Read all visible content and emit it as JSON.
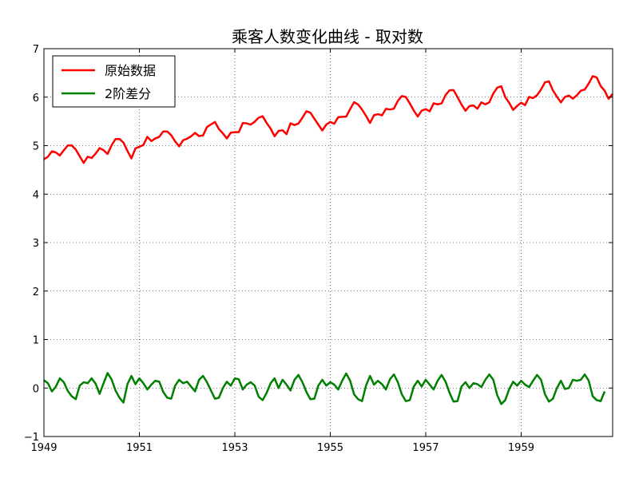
{
  "chart_data": {
    "type": "line",
    "title": "乘客人数变化曲线 - 取对数",
    "xlabel": "",
    "ylabel": "",
    "xlim": [
      1949.0,
      1960.917
    ],
    "ylim": [
      -1,
      7
    ],
    "grid": true,
    "legend_position": "top-left",
    "x_ticks": [
      1949,
      1951,
      1953,
      1955,
      1957,
      1959
    ],
    "x_tick_labels": [
      "1949",
      "1951",
      "1953",
      "1955",
      "1957",
      "1959"
    ],
    "y_ticks": [
      -1,
      0,
      1,
      2,
      3,
      4,
      5,
      6,
      7
    ],
    "y_tick_labels": [
      "−1",
      "0",
      "1",
      "2",
      "3",
      "4",
      "5",
      "6",
      "7"
    ],
    "series": [
      {
        "name": "原始数据",
        "color": "#ff0000",
        "x_start": 1949.0,
        "x_step": 0.08333,
        "values": [
          4.718,
          4.771,
          4.883,
          4.86,
          4.796,
          4.905,
          5.004,
          5.004,
          4.92,
          4.779,
          4.644,
          4.771,
          4.745,
          4.836,
          4.949,
          4.905,
          4.828,
          5.004,
          5.136,
          5.136,
          5.063,
          4.891,
          4.736,
          4.942,
          4.977,
          5.011,
          5.182,
          5.094,
          5.147,
          5.182,
          5.293,
          5.293,
          5.215,
          5.088,
          4.984,
          5.112,
          5.142,
          5.193,
          5.263,
          5.198,
          5.209,
          5.384,
          5.438,
          5.489,
          5.342,
          5.252,
          5.148,
          5.268,
          5.278,
          5.278,
          5.464,
          5.46,
          5.434,
          5.493,
          5.576,
          5.606,
          5.468,
          5.352,
          5.193,
          5.303,
          5.318,
          5.236,
          5.46,
          5.425,
          5.455,
          5.576,
          5.71,
          5.68,
          5.557,
          5.434,
          5.313,
          5.434,
          5.489,
          5.451,
          5.587,
          5.595,
          5.598,
          5.753,
          5.897,
          5.849,
          5.743,
          5.613,
          5.468,
          5.628,
          5.649,
          5.624,
          5.759,
          5.746,
          5.762,
          5.924,
          6.023,
          6.004,
          5.872,
          5.724,
          5.602,
          5.724,
          5.753,
          5.707,
          5.874,
          5.852,
          5.872,
          6.045,
          6.142,
          6.146,
          6.001,
          5.849,
          5.72,
          5.817,
          5.829,
          5.762,
          5.892,
          5.852,
          5.894,
          6.075,
          6.196,
          6.225,
          6.001,
          5.883,
          5.737,
          5.82,
          5.886,
          5.835,
          6.006,
          5.981,
          6.04,
          6.157,
          6.306,
          6.326,
          6.138,
          6.009,
          5.892,
          6.004,
          6.033,
          5.969,
          6.038,
          6.133,
          6.157,
          6.282,
          6.433,
          6.407,
          6.23,
          6.133,
          5.966,
          6.068
        ]
      },
      {
        "name": "2阶差分",
        "color": "#008000",
        "x_start": 1949.0,
        "x_step": 0.08333,
        "values": [
          0.16,
          0.1,
          -0.07,
          0.03,
          0.2,
          0.12,
          -0.06,
          -0.17,
          -0.23,
          0.05,
          0.12,
          0.1,
          0.2,
          0.09,
          -0.12,
          0.1,
          0.31,
          0.18,
          -0.05,
          -0.2,
          -0.3,
          0.08,
          0.25,
          0.08,
          0.2,
          0.1,
          -0.03,
          0.07,
          0.15,
          0.13,
          -0.08,
          -0.2,
          -0.22,
          0.05,
          0.17,
          0.1,
          0.13,
          0.03,
          -0.07,
          0.17,
          0.25,
          0.12,
          -0.05,
          -0.22,
          -0.2,
          0.0,
          0.13,
          0.05,
          0.2,
          0.18,
          -0.03,
          0.07,
          0.12,
          0.05,
          -0.18,
          -0.25,
          -0.1,
          0.1,
          0.2,
          0.0,
          0.17,
          0.07,
          -0.05,
          0.17,
          0.27,
          0.12,
          -0.08,
          -0.23,
          -0.22,
          0.05,
          0.17,
          0.05,
          0.12,
          0.07,
          -0.03,
          0.15,
          0.3,
          0.15,
          -0.13,
          -0.23,
          -0.27,
          0.05,
          0.25,
          0.07,
          0.15,
          0.08,
          -0.03,
          0.18,
          0.28,
          0.12,
          -0.13,
          -0.27,
          -0.25,
          0.03,
          0.15,
          0.03,
          0.17,
          0.07,
          -0.03,
          0.15,
          0.27,
          0.13,
          -0.1,
          -0.28,
          -0.27,
          0.03,
          0.12,
          0.0,
          0.1,
          0.08,
          0.02,
          0.17,
          0.28,
          0.17,
          -0.15,
          -0.33,
          -0.25,
          -0.02,
          0.13,
          0.05,
          0.15,
          0.07,
          0.02,
          0.15,
          0.27,
          0.17,
          -0.13,
          -0.28,
          -0.22,
          0.0,
          0.15,
          -0.02,
          0.0,
          0.17,
          0.15,
          0.17,
          0.28,
          0.15,
          -0.17,
          -0.25,
          -0.27,
          -0.07
        ]
      }
    ]
  }
}
